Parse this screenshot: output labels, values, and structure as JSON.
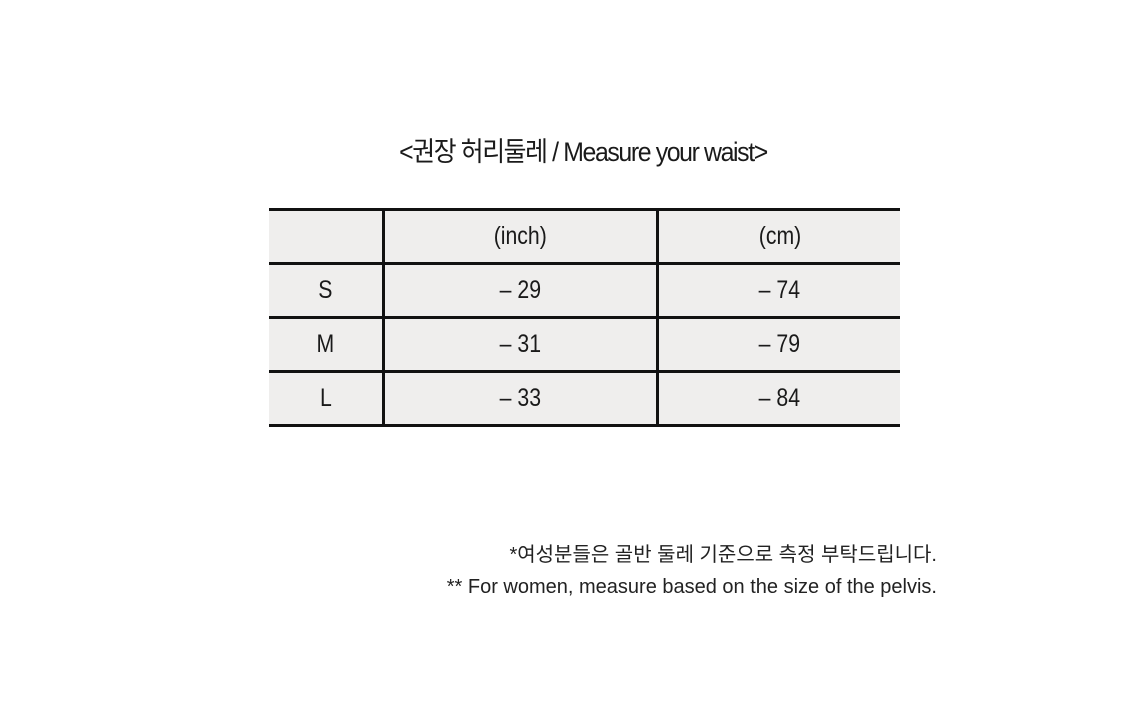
{
  "title": "<권장 허리둘레 / Measure your waist>",
  "table": {
    "headers": [
      "",
      "(inch)",
      "(cm)"
    ],
    "rows": [
      {
        "size": "S",
        "inch": "– 29",
        "cm": "– 74"
      },
      {
        "size": "M",
        "inch": "– 31",
        "cm": "– 79"
      },
      {
        "size": "L",
        "inch": "– 33",
        "cm": "– 84"
      }
    ]
  },
  "notes": [
    "*여성분들은 골반 둘레 기준으로 측정 부탁드립니다.",
    "** For women, measure based on the size of the pelvis."
  ]
}
